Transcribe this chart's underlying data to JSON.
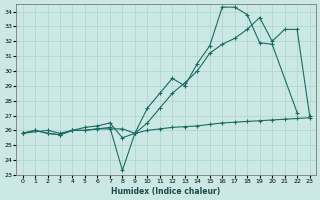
{
  "xlabel": "Humidex (Indice chaleur)",
  "bg_color": "#cce8e4",
  "grid_color": "#aad4d0",
  "line_color": "#1a6b65",
  "xlim": [
    -0.5,
    23.5
  ],
  "ylim": [
    23,
    34.5
  ],
  "yticks": [
    23,
    24,
    25,
    26,
    27,
    28,
    29,
    30,
    31,
    32,
    33,
    34
  ],
  "xticks": [
    0,
    1,
    2,
    3,
    4,
    5,
    6,
    7,
    8,
    9,
    10,
    11,
    12,
    13,
    14,
    15,
    16,
    17,
    18,
    19,
    20,
    21,
    22,
    23
  ],
  "line1_x": [
    0,
    1,
    2,
    3,
    4,
    5,
    6,
    7,
    8,
    9,
    10,
    11,
    12,
    13,
    14,
    15,
    16,
    17,
    18,
    19,
    20,
    21,
    22,
    23
  ],
  "line1_y": [
    25.8,
    26.0,
    25.8,
    25.7,
    26.0,
    26.0,
    26.1,
    26.1,
    26.1,
    25.8,
    26.0,
    26.1,
    26.2,
    26.25,
    26.3,
    26.4,
    26.5,
    26.55,
    26.6,
    26.65,
    26.7,
    26.75,
    26.8,
    26.85
  ],
  "line2_x": [
    0,
    1,
    2,
    3,
    4,
    5,
    6,
    7,
    8,
    9,
    10,
    11,
    12,
    13,
    14,
    15,
    16,
    17,
    18,
    19,
    20,
    22
  ],
  "line2_y": [
    25.8,
    26.0,
    25.8,
    25.7,
    26.0,
    26.0,
    26.1,
    26.2,
    23.3,
    25.8,
    27.5,
    28.5,
    29.5,
    29.0,
    30.5,
    31.7,
    34.3,
    34.3,
    33.8,
    31.9,
    31.8,
    27.2
  ],
  "line3_x": [
    0,
    2,
    3,
    4,
    5,
    6,
    7,
    8,
    9,
    10,
    11,
    12,
    13,
    14,
    15,
    16,
    17,
    18,
    19,
    20,
    21,
    22,
    23
  ],
  "line3_y": [
    25.8,
    26.0,
    25.8,
    26.0,
    26.2,
    26.3,
    26.5,
    25.5,
    25.8,
    26.5,
    27.5,
    28.5,
    29.2,
    30.0,
    31.2,
    31.8,
    32.2,
    32.8,
    33.6,
    32.0,
    32.8,
    32.8,
    27.0
  ]
}
